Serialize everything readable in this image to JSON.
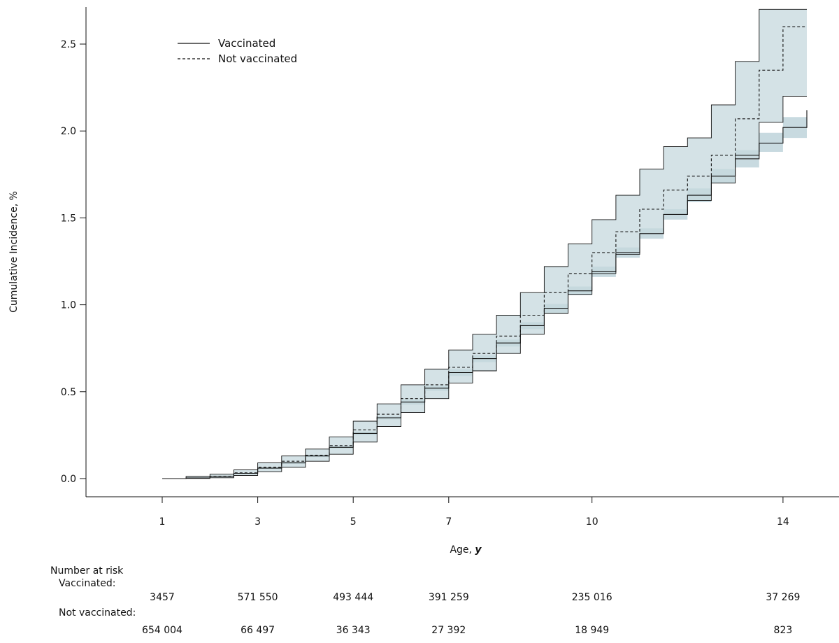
{
  "chart_data": {
    "type": "line",
    "ylabel": "Cumulative Incidence, %",
    "xlabel_text": "Age, ",
    "xlabel_unit": "y",
    "xlim": [
      0,
      14.6
    ],
    "ylim": [
      0,
      2.7
    ],
    "x_ticks": [
      1,
      3,
      5,
      7,
      10,
      14
    ],
    "x_tick_labels": [
      "1",
      "3",
      "5",
      "7",
      "10",
      "14"
    ],
    "y_ticks": [
      0,
      0.5,
      1,
      1.5,
      2,
      2.5
    ],
    "y_tick_labels": [
      "0.0",
      "0.5",
      "1.0",
      "1.5",
      "2.0",
      "2.5"
    ],
    "grid": false,
    "legend_position": "top-left",
    "colors": {
      "ci_band": "#c5d8de",
      "line": "#111111"
    },
    "series": [
      {
        "name": "Vaccinated",
        "line_style": "solid",
        "x": [
          1,
          1.5,
          2,
          2.5,
          3,
          3.5,
          4,
          4.5,
          5,
          5.5,
          6,
          6.5,
          7,
          7.5,
          8,
          8.5,
          9,
          9.5,
          10,
          10.5,
          11,
          11.5,
          12,
          12.5,
          13,
          13.5,
          14,
          14.5
        ],
        "y": [
          0,
          0.004,
          0.012,
          0.03,
          0.06,
          0.09,
          0.13,
          0.18,
          0.26,
          0.35,
          0.44,
          0.52,
          0.61,
          0.69,
          0.78,
          0.88,
          0.98,
          1.08,
          1.19,
          1.3,
          1.41,
          1.52,
          1.63,
          1.74,
          1.84,
          1.93,
          2.02,
          2.12
        ],
        "ci_lower": [
          0,
          0.003,
          0.01,
          0.027,
          0.056,
          0.085,
          0.124,
          0.173,
          0.25,
          0.34,
          0.425,
          0.505,
          0.59,
          0.67,
          0.76,
          0.86,
          0.955,
          1.055,
          1.16,
          1.27,
          1.38,
          1.49,
          1.59,
          1.7,
          1.79,
          1.88,
          1.96,
          2.04
        ],
        "ci_upper": [
          0,
          0.005,
          0.014,
          0.033,
          0.064,
          0.095,
          0.136,
          0.187,
          0.27,
          0.36,
          0.455,
          0.535,
          0.63,
          0.71,
          0.8,
          0.9,
          1.005,
          1.105,
          1.22,
          1.33,
          1.44,
          1.55,
          1.67,
          1.78,
          1.89,
          1.99,
          2.08,
          2.2
        ]
      },
      {
        "name": "Not vaccinated",
        "line_style": "dashed",
        "x": [
          1,
          1.5,
          2,
          2.5,
          3,
          3.5,
          4,
          4.5,
          5,
          5.5,
          6,
          6.5,
          7,
          7.5,
          8,
          8.5,
          9,
          9.5,
          10,
          10.5,
          11,
          11.5,
          12,
          12.5,
          13,
          13.5,
          14,
          14.5
        ],
        "y": [
          0,
          0.004,
          0.014,
          0.033,
          0.065,
          0.1,
          0.135,
          0.19,
          0.28,
          0.37,
          0.46,
          0.54,
          0.64,
          0.72,
          0.82,
          0.94,
          1.07,
          1.18,
          1.3,
          1.42,
          1.55,
          1.66,
          1.74,
          1.86,
          2.07,
          2.35,
          2.6,
          2.6
        ],
        "ci_lower": [
          0,
          0.001,
          0.005,
          0.018,
          0.04,
          0.065,
          0.1,
          0.14,
          0.21,
          0.3,
          0.38,
          0.46,
          0.55,
          0.62,
          0.72,
          0.83,
          0.95,
          1.06,
          1.18,
          1.29,
          1.41,
          1.52,
          1.6,
          1.7,
          1.86,
          2.05,
          2.2,
          2.2
        ],
        "ci_upper": [
          0,
          0.012,
          0.025,
          0.05,
          0.09,
          0.13,
          0.17,
          0.24,
          0.33,
          0.43,
          0.54,
          0.63,
          0.74,
          0.83,
          0.94,
          1.07,
          1.22,
          1.35,
          1.49,
          1.63,
          1.78,
          1.91,
          1.96,
          2.15,
          2.4,
          2.7,
          2.7,
          2.7
        ]
      }
    ],
    "legend": [
      {
        "label": "Vaccinated",
        "line_style": "solid"
      },
      {
        "label": "Not vaccinated",
        "line_style": "dashed"
      }
    ],
    "risk_table": {
      "title": "Number at risk",
      "rows": [
        {
          "label": "Vaccinated:",
          "values": [
            {
              "x": 1,
              "text": "3457"
            },
            {
              "x": 3,
              "text": "571 550"
            },
            {
              "x": 5,
              "text": "493 444"
            },
            {
              "x": 7,
              "text": "391 259"
            },
            {
              "x": 10,
              "text": "235 016"
            },
            {
              "x": 14,
              "text": "37 269"
            }
          ]
        },
        {
          "label": "Not vaccinated:",
          "values": [
            {
              "x": 1,
              "text": "654 004"
            },
            {
              "x": 3,
              "text": "66 497"
            },
            {
              "x": 5,
              "text": "36 343"
            },
            {
              "x": 7,
              "text": "27 392"
            },
            {
              "x": 10,
              "text": "18 949"
            },
            {
              "x": 14,
              "text": "823"
            }
          ]
        }
      ]
    }
  }
}
